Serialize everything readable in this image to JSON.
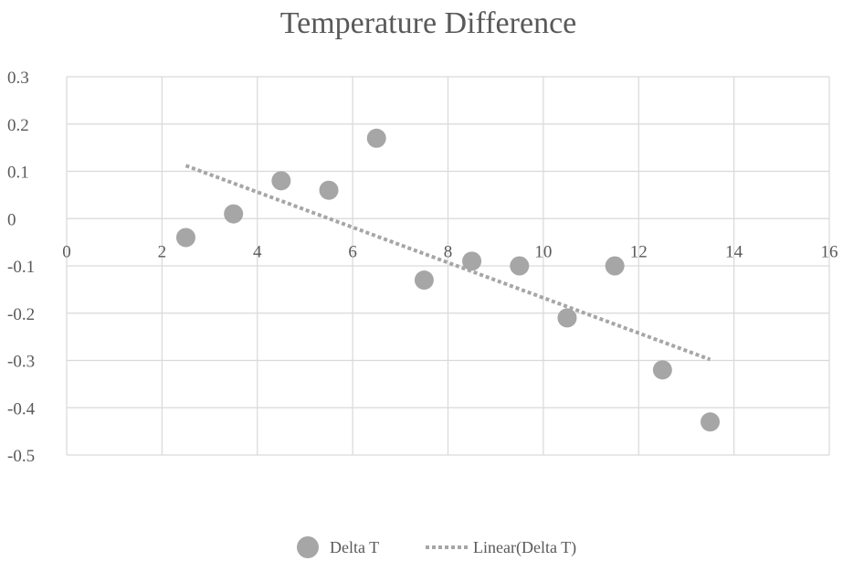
{
  "chart_data": {
    "type": "scatter",
    "title": "Temperature Difference",
    "xlabel": "",
    "ylabel": "",
    "xlim": [
      0,
      16
    ],
    "ylim": [
      -0.5,
      0.3
    ],
    "x_ticks": [
      0,
      2,
      4,
      6,
      8,
      10,
      12,
      14,
      16
    ],
    "y_ticks": [
      0.3,
      0.2,
      0.1,
      0,
      -0.1,
      -0.2,
      -0.3,
      -0.4,
      -0.5
    ],
    "y_tick_labels": [
      "0.3",
      "0.2",
      "0.1",
      "0",
      "-0.1",
      "-0.2",
      "-0.3",
      "-0.4",
      "-0.5"
    ],
    "grid": true,
    "legend_position": "bottom",
    "series": [
      {
        "name": "Delta T",
        "kind": "scatter",
        "color": "#a6a6a6",
        "x": [
          2.5,
          3.5,
          4.5,
          5.5,
          6.5,
          7.5,
          8.5,
          9.5,
          10.5,
          11.5,
          12.5,
          13.5
        ],
        "y": [
          -0.04,
          0.01,
          0.08,
          0.06,
          0.17,
          -0.13,
          -0.09,
          -0.1,
          -0.21,
          -0.1,
          -0.32,
          -0.43
        ]
      },
      {
        "name": "Linear(Delta T)",
        "kind": "trendline",
        "color": "#a6a6a6",
        "x": [
          2.5,
          13.5
        ],
        "y": [
          0.112,
          -0.298
        ]
      }
    ]
  }
}
